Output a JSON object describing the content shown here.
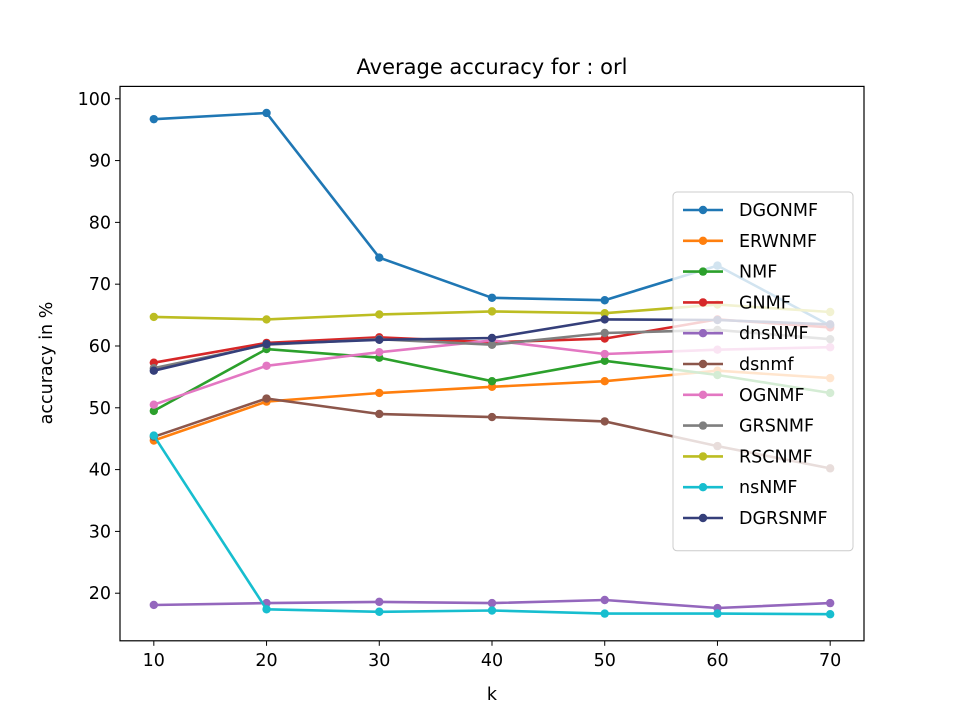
{
  "chart_data": {
    "type": "line",
    "title": "Average accuracy for : orl",
    "xlabel": "k",
    "ylabel": "accuracy in %",
    "x": [
      10,
      20,
      30,
      40,
      50,
      60,
      70
    ],
    "xlim": [
      7,
      73
    ],
    "ylim": [
      12.3,
      102
    ],
    "xticks": [
      "10",
      "20",
      "30",
      "40",
      "50",
      "60",
      "70"
    ],
    "yticks": [
      "20",
      "30",
      "40",
      "50",
      "60",
      "70",
      "80",
      "90",
      "100"
    ],
    "grid": false,
    "legend_position": "center-right",
    "series": [
      {
        "name": "DGONMF",
        "color": "#1f77b4",
        "values": [
          96.7,
          97.7,
          74.3,
          67.8,
          67.4,
          73.0,
          63.3
        ]
      },
      {
        "name": "ERWNMF",
        "color": "#ff7f0e",
        "values": [
          44.7,
          51.0,
          52.4,
          53.4,
          54.3,
          56.0,
          54.8
        ]
      },
      {
        "name": "NMF",
        "color": "#2ca02c",
        "values": [
          49.5,
          59.5,
          58.1,
          54.3,
          57.6,
          55.3,
          52.4
        ]
      },
      {
        "name": "GNMF",
        "color": "#d62728",
        "values": [
          57.3,
          60.5,
          61.4,
          60.6,
          61.2,
          64.3,
          63.0
        ]
      },
      {
        "name": "dnsNMF",
        "color": "#9467bd",
        "values": [
          18.1,
          18.4,
          18.6,
          18.4,
          18.9,
          17.6,
          18.4
        ]
      },
      {
        "name": "dsnmf",
        "color": "#8c564b",
        "values": [
          45.3,
          51.5,
          49.0,
          48.5,
          47.8,
          43.8,
          40.2
        ]
      },
      {
        "name": "OGNMF",
        "color": "#e377c2",
        "values": [
          50.5,
          56.8,
          59.0,
          60.9,
          58.7,
          59.4,
          59.8
        ]
      },
      {
        "name": "GRSNMF",
        "color": "#7f7f7f",
        "values": [
          56.4,
          60.2,
          61.1,
          60.2,
          62.1,
          62.6,
          61.1
        ]
      },
      {
        "name": "RSCNMF",
        "color": "#bcbd22",
        "values": [
          64.7,
          64.3,
          65.1,
          65.6,
          65.3,
          66.7,
          65.5
        ]
      },
      {
        "name": "nsNMF",
        "color": "#17becf",
        "values": [
          45.5,
          17.4,
          17.0,
          17.2,
          16.7,
          16.7,
          16.6
        ]
      },
      {
        "name": "DGRSNMF",
        "color": "#353f7a",
        "values": [
          56.0,
          60.3,
          61.0,
          61.3,
          64.3,
          64.2,
          63.5
        ]
      }
    ]
  }
}
